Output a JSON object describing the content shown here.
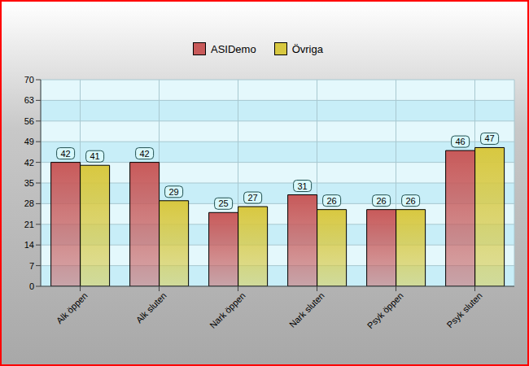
{
  "chart_data": {
    "type": "bar",
    "categories": [
      "Alk öppen",
      "Alk sluten",
      "Nark öppen",
      "Nark sluten",
      "Psyk öppen",
      "Psyk sluten"
    ],
    "series": [
      {
        "name": "ASIDemo",
        "color": "#c85a5a",
        "values": [
          42,
          42,
          25,
          31,
          26,
          46
        ]
      },
      {
        "name": "Övriga",
        "color": "#d8c840",
        "values": [
          41,
          29,
          27,
          26,
          26,
          47
        ]
      }
    ],
    "ylim": [
      0,
      70
    ],
    "yticks": [
      0,
      7,
      14,
      21,
      28,
      35,
      42,
      49,
      56,
      63,
      70
    ],
    "grid": true,
    "legend": "top",
    "data_labels": true
  }
}
